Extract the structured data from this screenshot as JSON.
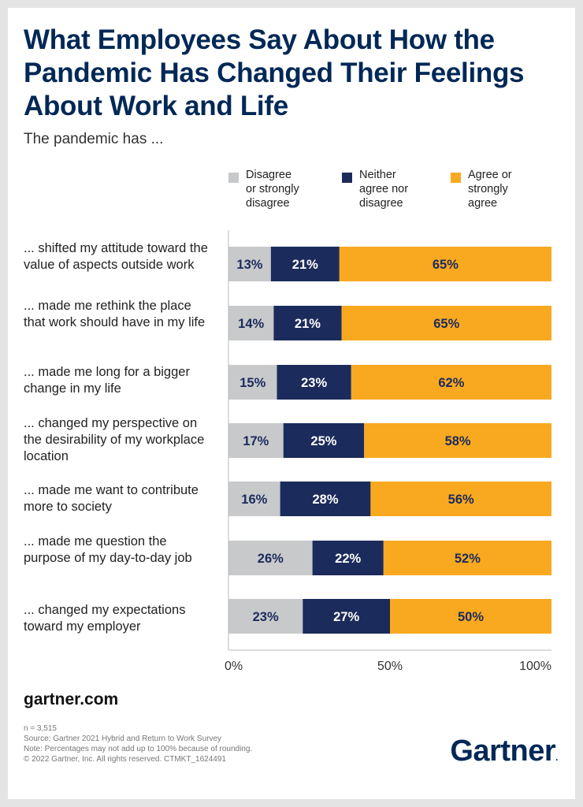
{
  "title": "What Employees Say About How the Pandemic Has Changed Their Feelings About Work and Life",
  "subtitle": "The pandemic has ...",
  "colors": {
    "disagree": "#c8c9cb",
    "neither": "#1b2b5b",
    "agree": "#f9a920",
    "axis": "#bbbbbb"
  },
  "chart_data": {
    "type": "bar",
    "orientation": "horizontal",
    "stacked": true,
    "xlim": [
      0,
      100
    ],
    "ticks": [
      "0%",
      "50%",
      "100%"
    ],
    "legend_position": "top",
    "categories": [
      "... shifted my attitude toward the value of aspects outside work",
      "... made me rethink the place that work should have in my life",
      "... made me long for a bigger change in my life",
      "... changed my perspective on the desirability of my workplace location",
      "... made me want to contribute more to society",
      "... made me question the purpose of my day-to-day job",
      "... changed my expectations toward my employer"
    ],
    "series": [
      {
        "name": "Disagree or strongly disagree",
        "values": [
          13,
          14,
          15,
          17,
          16,
          26,
          23
        ]
      },
      {
        "name": "Neither agree nor disagree",
        "values": [
          21,
          21,
          23,
          25,
          28,
          22,
          27
        ]
      },
      {
        "name": "Agree or strongly agree",
        "values": [
          65,
          65,
          62,
          58,
          56,
          52,
          50
        ]
      }
    ]
  },
  "legend": [
    "Disagree\nor strongly\ndisagree",
    "Neither\nagree nor\ndisagree",
    "Agree or\nstrongly\nagree"
  ],
  "site": "gartner.com",
  "footnotes": [
    "n = 3,515",
    "Source: Gartner 2021 Hybrid and Return to Work Survey",
    "Note: Percentages may not add up to 100% because of rounding.",
    "© 2022 Gartner, Inc. All rights reserved. CTMKT_1624491"
  ],
  "logo": "Gartner",
  "logo_mark": "."
}
